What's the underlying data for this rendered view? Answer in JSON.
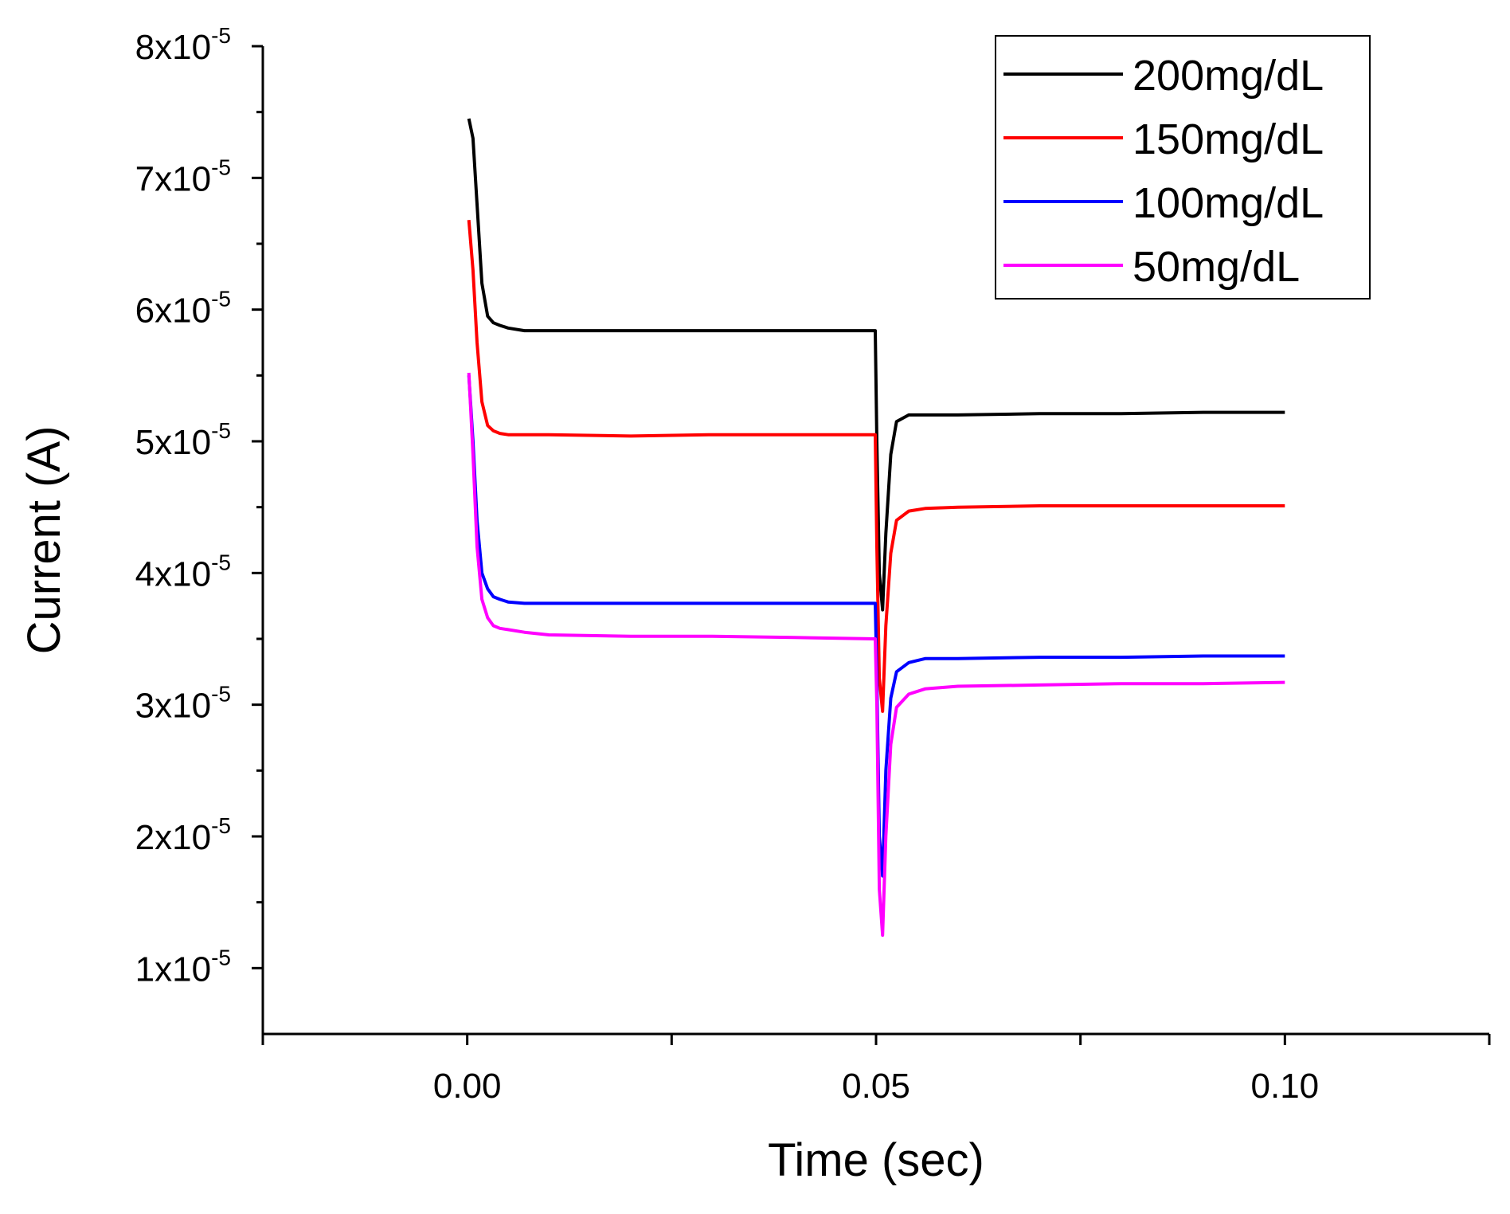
{
  "chart_data": {
    "type": "line",
    "title": "",
    "xlabel": "Time (sec)",
    "ylabel": "Current (A)",
    "xlim": [
      -0.025,
      0.125
    ],
    "ylim": [
      5e-06,
      8e-05
    ],
    "x_ticks": [
      {
        "value": 0.0,
        "label": "0.00"
      },
      {
        "value": 0.05,
        "label": "0.05"
      },
      {
        "value": 0.1,
        "label": "0.10"
      }
    ],
    "y_ticks": [
      {
        "value": 1e-05,
        "mantissa": "1x10",
        "exponent": "-5"
      },
      {
        "value": 2e-05,
        "mantissa": "2x10",
        "exponent": "-5"
      },
      {
        "value": 3e-05,
        "mantissa": "3x10",
        "exponent": "-5"
      },
      {
        "value": 4e-05,
        "mantissa": "4x10",
        "exponent": "-5"
      },
      {
        "value": 5e-05,
        "mantissa": "5x10",
        "exponent": "-5"
      },
      {
        "value": 6e-05,
        "mantissa": "6x10",
        "exponent": "-5"
      },
      {
        "value": 7e-05,
        "mantissa": "7x10",
        "exponent": "-5"
      },
      {
        "value": 8e-05,
        "mantissa": "8x10",
        "exponent": "-5"
      }
    ],
    "legend_position": "top-right",
    "series": [
      {
        "name": "200mg/dL",
        "color": "#000000",
        "x": [
          0.0002,
          0.0007,
          0.0012,
          0.0018,
          0.0025,
          0.0032,
          0.004,
          0.005,
          0.007,
          0.01,
          0.02,
          0.03,
          0.04,
          0.0499,
          0.0501,
          0.0504,
          0.0508,
          0.0512,
          0.0518,
          0.0525,
          0.054,
          0.056,
          0.06,
          0.07,
          0.08,
          0.09,
          0.1
        ],
        "y": [
          7.45e-05,
          7.3e-05,
          6.8e-05,
          6.2e-05,
          5.95e-05,
          5.9e-05,
          5.88e-05,
          5.86e-05,
          5.84e-05,
          5.84e-05,
          5.84e-05,
          5.84e-05,
          5.84e-05,
          5.84e-05,
          5e-05,
          4e-05,
          3.72e-05,
          4.3e-05,
          4.9e-05,
          5.15e-05,
          5.2e-05,
          5.2e-05,
          5.2e-05,
          5.21e-05,
          5.21e-05,
          5.22e-05,
          5.22e-05
        ]
      },
      {
        "name": "150mg/dL",
        "color": "#ff0000",
        "x": [
          0.0002,
          0.0007,
          0.0012,
          0.0018,
          0.0025,
          0.0032,
          0.004,
          0.005,
          0.007,
          0.01,
          0.02,
          0.03,
          0.04,
          0.0499,
          0.0501,
          0.0504,
          0.0508,
          0.0512,
          0.0518,
          0.0525,
          0.054,
          0.056,
          0.06,
          0.07,
          0.08,
          0.09,
          0.1
        ],
        "y": [
          6.68e-05,
          6.3e-05,
          5.75e-05,
          5.3e-05,
          5.12e-05,
          5.08e-05,
          5.06e-05,
          5.05e-05,
          5.05e-05,
          5.05e-05,
          5.04e-05,
          5.05e-05,
          5.05e-05,
          5.05e-05,
          4.2e-05,
          3.2e-05,
          2.95e-05,
          3.6e-05,
          4.15e-05,
          4.4e-05,
          4.47e-05,
          4.49e-05,
          4.5e-05,
          4.51e-05,
          4.51e-05,
          4.51e-05,
          4.51e-05
        ]
      },
      {
        "name": "100mg/dL",
        "color": "#0000ff",
        "x": [
          0.0002,
          0.0007,
          0.0012,
          0.0018,
          0.0025,
          0.0032,
          0.004,
          0.005,
          0.007,
          0.01,
          0.02,
          0.03,
          0.04,
          0.0499,
          0.0501,
          0.0504,
          0.0508,
          0.0512,
          0.0518,
          0.0525,
          0.054,
          0.056,
          0.06,
          0.07,
          0.08,
          0.09,
          0.1
        ],
        "y": [
          5.5e-05,
          5e-05,
          4.4e-05,
          4e-05,
          3.88e-05,
          3.82e-05,
          3.8e-05,
          3.78e-05,
          3.77e-05,
          3.77e-05,
          3.77e-05,
          3.77e-05,
          3.77e-05,
          3.77e-05,
          3.2e-05,
          2e-05,
          1.7e-05,
          2.5e-05,
          3.05e-05,
          3.25e-05,
          3.32e-05,
          3.35e-05,
          3.35e-05,
          3.36e-05,
          3.36e-05,
          3.37e-05,
          3.37e-05
        ]
      },
      {
        "name": "50mg/dL",
        "color": "#ff00ff",
        "x": [
          0.0002,
          0.0007,
          0.0012,
          0.0018,
          0.0025,
          0.0032,
          0.004,
          0.005,
          0.007,
          0.01,
          0.02,
          0.03,
          0.04,
          0.0499,
          0.0501,
          0.0504,
          0.0508,
          0.0512,
          0.0518,
          0.0525,
          0.054,
          0.056,
          0.06,
          0.07,
          0.08,
          0.09,
          0.1
        ],
        "y": [
          5.52e-05,
          4.9e-05,
          4.2e-05,
          3.8e-05,
          3.66e-05,
          3.6e-05,
          3.58e-05,
          3.57e-05,
          3.55e-05,
          3.53e-05,
          3.52e-05,
          3.52e-05,
          3.51e-05,
          3.5e-05,
          3e-05,
          1.6e-05,
          1.25e-05,
          2e-05,
          2.7e-05,
          2.98e-05,
          3.08e-05,
          3.12e-05,
          3.14e-05,
          3.15e-05,
          3.16e-05,
          3.16e-05,
          3.17e-05
        ]
      }
    ]
  }
}
